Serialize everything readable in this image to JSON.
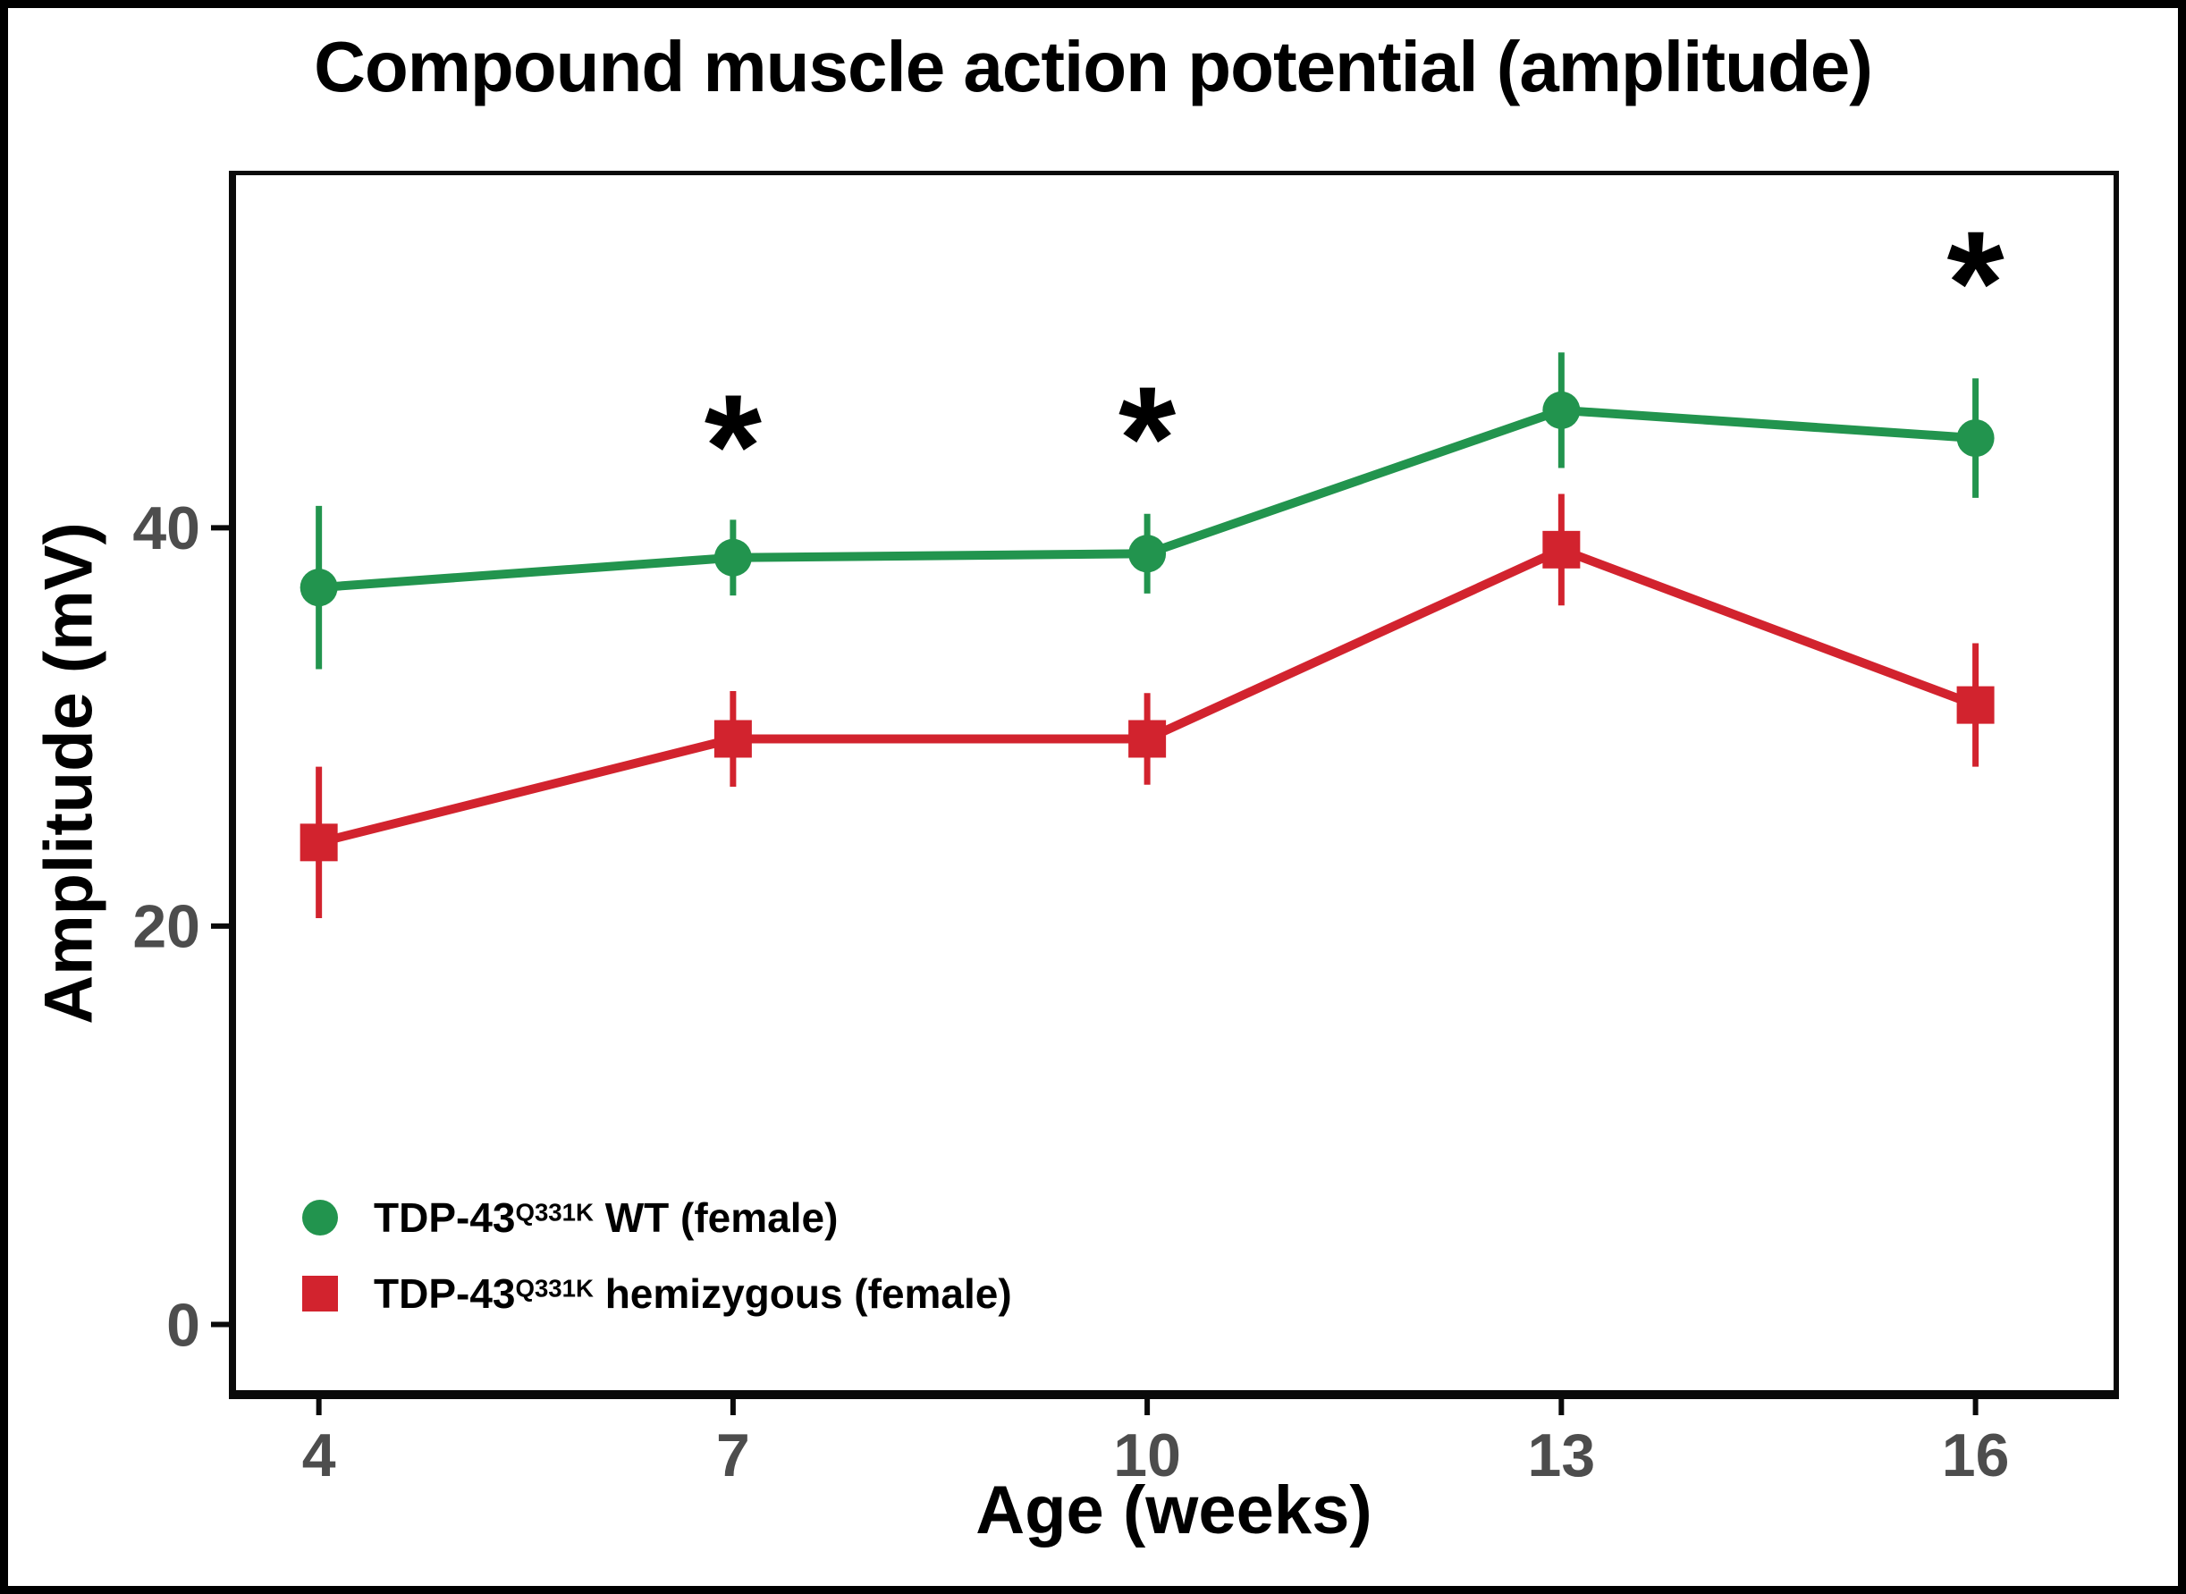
{
  "chart_data": {
    "type": "line",
    "title": "Compound muscle action potential (amplitude)",
    "xlabel": "Age (weeks)",
    "ylabel": "Amplitude (mV)",
    "x": [
      4,
      7,
      10,
      13,
      16
    ],
    "xticks": [
      4,
      7,
      10,
      13,
      16
    ],
    "yticks": [
      0,
      20,
      40
    ],
    "xlim": [
      3.4,
      17.0
    ],
    "ylim": [
      -3.3,
      57.7
    ],
    "grid": false,
    "legend_position": "inside-bottom-left",
    "colors": {
      "axis": "#0a0a0a",
      "tick_labels": "#4d4d4d",
      "significance": "#000000"
    },
    "series": [
      {
        "label_base": "TDP-43",
        "label_sup": "Q331K",
        "label_rest": " WT (female)",
        "color": "#22944e",
        "marker": "circle",
        "values": [
          37.0,
          38.5,
          38.7,
          45.9,
          44.5
        ],
        "errors": [
          4.1,
          1.9,
          2.0,
          2.9,
          3.0
        ]
      },
      {
        "label_base": "TDP-43",
        "label_sup": "Q331K",
        "label_rest": " hemizygous (female)",
        "color": "#d2232e",
        "marker": "square",
        "values": [
          24.2,
          29.4,
          29.4,
          38.9,
          31.1
        ],
        "errors": [
          3.8,
          2.4,
          2.3,
          2.8,
          3.1
        ]
      }
    ],
    "annotations": [
      {
        "text": "*",
        "x": 7,
        "y": 45.4
      },
      {
        "text": "*",
        "x": 10,
        "y": 45.8
      },
      {
        "text": "*",
        "x": 16,
        "y": 53.6
      }
    ]
  }
}
